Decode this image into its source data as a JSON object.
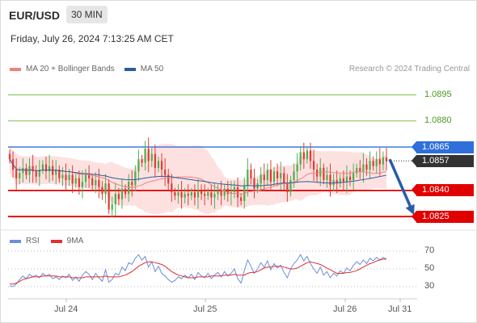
{
  "header": {
    "pair": "EUR/USD",
    "timeframe": "30 MIN",
    "datetime": "Friday, July 26, 2024 7:13:25 AM CET"
  },
  "legend": {
    "ma20": "MA 20 + Bollinger Bands",
    "ma50": "MA 50",
    "credit": "Research © 2024 Trading Central"
  },
  "rsi_legend": {
    "rsi": "RSI",
    "ma9": "9MA"
  },
  "colors": {
    "up_candle": "#4caf50",
    "down_candle": "#e53935",
    "ma20": "#f08080",
    "ma50": "#2e5b9a",
    "bollinger_fill": "#fde1e1",
    "resistance_green": "#7cbf4a",
    "pivot_blue": "#2f6fdb",
    "support_red": "#e00000",
    "arrow": "#2a5ca8",
    "price_tag": "#333333",
    "rsi": "#6a8fd8",
    "ma9": "#e03030"
  },
  "chart_data": [
    {
      "type": "candlestick",
      "title": "EUR/USD",
      "timeframe": "30 MIN",
      "ylim": [
        1.08195,
        1.0905
      ],
      "current_price": "1.0857",
      "levels": [
        {
          "value": 1.0895,
          "label": "1.0895",
          "kind": "resistance"
        },
        {
          "value": 1.088,
          "label": "1.0880",
          "kind": "resistance"
        },
        {
          "value": 1.0865,
          "label": "1.0865",
          "kind": "pivot"
        },
        {
          "value": 1.084,
          "label": "1.0840",
          "kind": "support"
        },
        {
          "value": 1.0825,
          "label": "1.0825",
          "kind": "support"
        }
      ],
      "x_ticks": [
        "Jul 24",
        "Jul 25",
        "Jul 26",
        "Jul 31"
      ],
      "forecast_arrow": {
        "from": 1.0858,
        "to": 1.0825
      },
      "closes": [
        1.0858,
        1.0852,
        1.0847,
        1.085,
        1.0853,
        1.0849,
        1.0854,
        1.0851,
        1.0848,
        1.0852,
        1.0855,
        1.0851,
        1.0854,
        1.0849,
        1.0852,
        1.0847,
        1.0849,
        1.0846,
        1.0849,
        1.0844,
        1.0847,
        1.0842,
        1.0845,
        1.0849,
        1.0847,
        1.0843,
        1.0846,
        1.0842,
        1.0838,
        1.0844,
        1.0829,
        1.0832,
        1.0838,
        1.0835,
        1.0841,
        1.0838,
        1.0845,
        1.0843,
        1.0851,
        1.0858,
        1.0856,
        1.0864,
        1.0857,
        1.0861,
        1.0853,
        1.0857,
        1.0852,
        1.0849,
        1.0844,
        1.0839,
        1.0837,
        1.0839,
        1.0836,
        1.0838,
        1.0837,
        1.0839,
        1.0836,
        1.084,
        1.0838,
        1.0837,
        1.0839,
        1.0836,
        1.0838,
        1.084,
        1.0837,
        1.0841,
        1.0838,
        1.0839,
        1.0842,
        1.0836,
        1.0834,
        1.0843,
        1.0852,
        1.0847,
        1.0841,
        1.0844,
        1.0849,
        1.0846,
        1.0852,
        1.0845,
        1.0851,
        1.0847,
        1.085,
        1.0844,
        1.0839,
        1.0846,
        1.0851,
        1.0855,
        1.0862,
        1.0858,
        1.0863,
        1.0857,
        1.0852,
        1.0848,
        1.0853,
        1.0846,
        1.0849,
        1.0843,
        1.0846,
        1.0844,
        1.0847,
        1.0845,
        1.0848,
        1.0846,
        1.085,
        1.0853,
        1.0851,
        1.0855,
        1.0852,
        1.0857,
        1.0854,
        1.0858,
        1.0855,
        1.0859,
        1.0857
      ]
    },
    {
      "type": "line",
      "title": "RSI",
      "ylim": [
        20,
        80
      ],
      "y_ticks": [
        70,
        50,
        30
      ],
      "series": [
        {
          "name": "RSI",
          "values": [
            31,
            30,
            33,
            38,
            42,
            39,
            44,
            41,
            43,
            40,
            45,
            42,
            44,
            39,
            41,
            38,
            42,
            40,
            44,
            37,
            41,
            36,
            43,
            47,
            44,
            38,
            45,
            40,
            36,
            49,
            35,
            38,
            45,
            43,
            52,
            48,
            57,
            55,
            62,
            66,
            60,
            64,
            52,
            58,
            47,
            53,
            45,
            42,
            38,
            35,
            37,
            41,
            39,
            43,
            40,
            44,
            38,
            46,
            42,
            40,
            45,
            39,
            43,
            46,
            41,
            47,
            42,
            45,
            50,
            39,
            34,
            48,
            60,
            53,
            45,
            50,
            57,
            52,
            59,
            49,
            56,
            51,
            54,
            46,
            40,
            50,
            56,
            60,
            66,
            59,
            64,
            56,
            50,
            45,
            52,
            43,
            47,
            40,
            45,
            42,
            48,
            45,
            51,
            48,
            54,
            58,
            55,
            60,
            56,
            62,
            59,
            63,
            60,
            63,
            61
          ]
        },
        {
          "name": "9MA",
          "values": [
            33,
            33,
            34,
            36,
            38,
            39,
            40,
            41,
            41,
            41,
            42,
            42,
            42,
            42,
            42,
            41,
            41,
            41,
            41,
            40,
            40,
            40,
            40,
            41,
            41,
            41,
            41,
            41,
            41,
            42,
            41,
            41,
            41,
            41,
            42,
            43,
            45,
            47,
            50,
            53,
            55,
            57,
            58,
            58,
            57,
            56,
            55,
            53,
            50,
            47,
            45,
            43,
            42,
            41,
            40,
            40,
            40,
            41,
            41,
            41,
            41,
            42,
            42,
            42,
            42,
            43,
            43,
            43,
            44,
            43,
            43,
            43,
            45,
            46,
            46,
            47,
            49,
            51,
            52,
            52,
            53,
            53,
            53,
            52,
            51,
            50,
            50,
            51,
            53,
            55,
            57,
            58,
            57,
            56,
            55,
            53,
            51,
            49,
            47,
            45,
            45,
            45,
            46,
            46,
            47,
            48,
            50,
            52,
            54,
            56,
            57,
            59,
            60,
            61,
            61
          ]
        }
      ]
    }
  ]
}
